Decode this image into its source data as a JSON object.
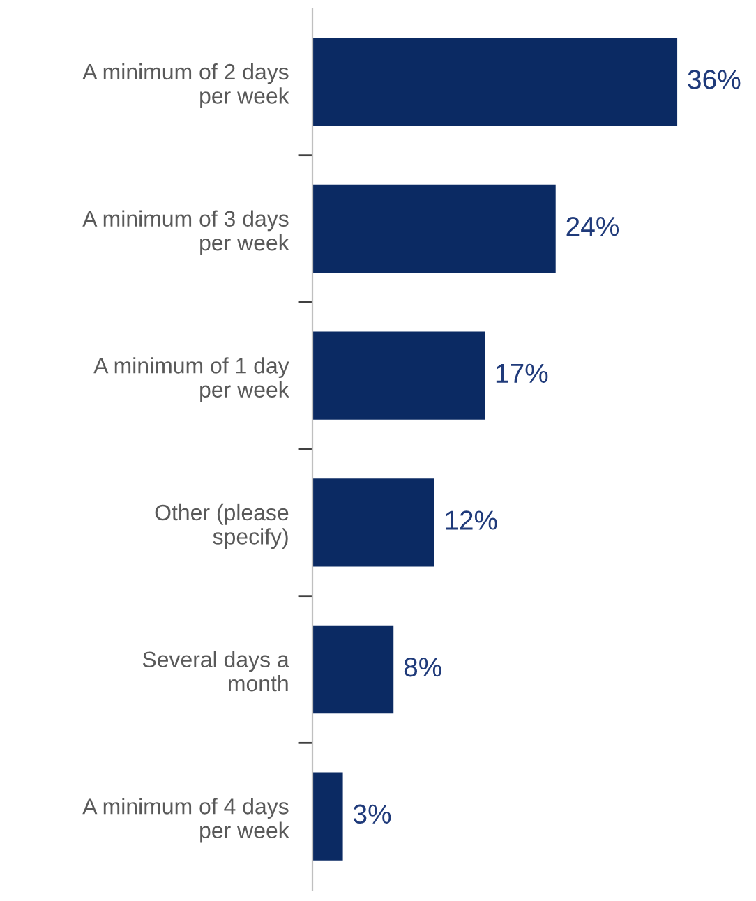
{
  "chart_data": {
    "type": "bar",
    "orientation": "horizontal",
    "categories": [
      "A minimum of 2 days\nper week",
      "A minimum of 3 days\nper week",
      "A minimum of 1 day\nper week",
      "Other (please\nspecify)",
      "Several days a\nmonth",
      "A minimum of 4 days\nper week"
    ],
    "values": [
      36,
      24,
      17,
      12,
      8,
      3
    ],
    "value_labels": [
      "36%",
      "24%",
      "17%",
      "12%",
      "8%",
      "3%"
    ],
    "color": "#0b2a63",
    "grid": false,
    "legend": false
  }
}
